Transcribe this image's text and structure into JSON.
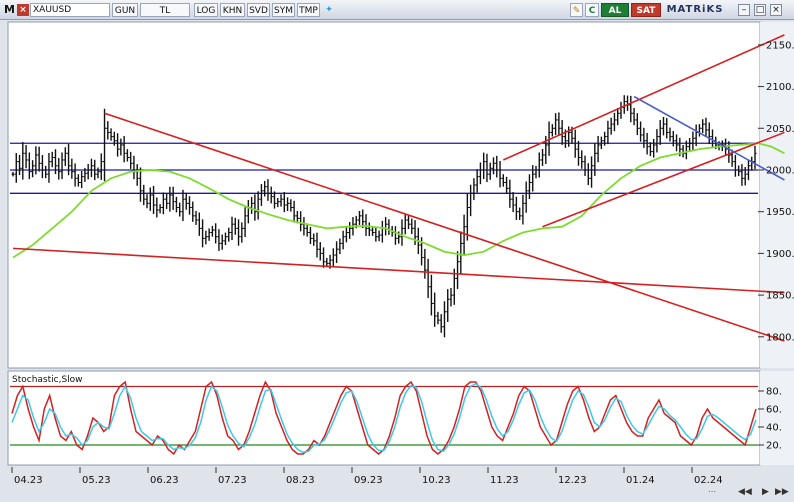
{
  "toolbar": {
    "logo": "M",
    "symbol": "XAUUSD",
    "buttons": [
      "GUN",
      "TL",
      "LOG",
      "KHN",
      "SVD",
      "SYM",
      "TMP"
    ],
    "buy_label": "AL",
    "sell_label": "SAT",
    "brand": "MATRiKS",
    "c_label": "C"
  },
  "chart_data": [
    {
      "type": "line",
      "title": "",
      "chart_style": "bar-ohlc",
      "ylim": [
        1765,
        2175
      ],
      "y_ticks": [
        1800,
        1850,
        1900,
        1950,
        2000,
        2050,
        2100,
        2150
      ],
      "y_tick_labels": [
        "1800.",
        "1850.",
        "1900.",
        "1950.",
        "2000.",
        "2050.",
        "2100.",
        "2150."
      ],
      "x_tick_labels": [
        "04.23",
        "05.23",
        "06.23",
        "07.23",
        "08.23",
        "09.23",
        "10.23",
        "11.23",
        "12.23",
        "01.24",
        "02.24"
      ],
      "price_close": [
        1995,
        2010,
        2002,
        2020,
        2012,
        1998,
        2005,
        2018,
        2008,
        2000,
        1995,
        2010,
        2015,
        2005,
        1998,
        2012,
        2020,
        2005,
        1998,
        1990,
        1985,
        1992,
        1996,
        2000,
        2005,
        1995,
        1998,
        2010,
        2050,
        2045,
        2040,
        2035,
        2025,
        2030,
        2020,
        2015,
        2008,
        1998,
        1990,
        1975,
        1965,
        1960,
        1970,
        1958,
        1952,
        1955,
        1965,
        1960,
        1970,
        1962,
        1955,
        1950,
        1965,
        1960,
        1955,
        1945,
        1940,
        1930,
        1918,
        1920,
        1925,
        1928,
        1920,
        1912,
        1915,
        1920,
        1925,
        1935,
        1930,
        1920,
        1930,
        1945,
        1955,
        1960,
        1950,
        1965,
        1975,
        1980,
        1972,
        1968,
        1960,
        1962,
        1965,
        1958,
        1960,
        1955,
        1945,
        1942,
        1935,
        1930,
        1925,
        1918,
        1915,
        1905,
        1900,
        1890,
        1888,
        1892,
        1898,
        1905,
        1912,
        1920,
        1925,
        1930,
        1935,
        1940,
        1945,
        1938,
        1930,
        1928,
        1925,
        1920,
        1922,
        1930,
        1935,
        1928,
        1925,
        1918,
        1920,
        1930,
        1940,
        1935,
        1930,
        1920,
        1910,
        1895,
        1880,
        1860,
        1840,
        1825,
        1820,
        1812,
        1830,
        1845,
        1850,
        1870,
        1890,
        1912,
        1932,
        1955,
        1972,
        1982,
        1992,
        2000,
        2010,
        1995,
        2002,
        2008,
        2000,
        1990,
        1985,
        1978,
        1965,
        1958,
        1950,
        1945,
        1960,
        1975,
        1985,
        1995,
        2000,
        2012,
        2018,
        2030,
        2045,
        2050,
        2060,
        2050,
        2040,
        2035,
        2045,
        2038,
        2025,
        2015,
        2010,
        2000,
        1990,
        2005,
        2020,
        2030,
        2035,
        2040,
        2050,
        2055,
        2060,
        2068,
        2075,
        2082,
        2078,
        2068,
        2060,
        2050,
        2042,
        2035,
        2028,
        2022,
        2030,
        2040,
        2050,
        2055,
        2045,
        2040,
        2035,
        2030,
        2025,
        2020,
        2028,
        2032,
        2038,
        2045,
        2050,
        2055,
        2048,
        2040,
        2035,
        2030,
        2028,
        2030,
        2025,
        2018,
        2010,
        2000,
        1998,
        1990,
        1995,
        2005,
        2010,
        2020
      ],
      "moving_average": [
        {
          "color": "#7ddc2e",
          "points": [
            [
              0,
              1895
            ],
            [
              6,
              1910
            ],
            [
              12,
              1930
            ],
            [
              18,
              1950
            ],
            [
              24,
              1975
            ],
            [
              30,
              1990
            ],
            [
              36,
              1998
            ],
            [
              42,
              2000
            ],
            [
              48,
              1998
            ],
            [
              54,
              1990
            ],
            [
              60,
              1978
            ],
            [
              66,
              1965
            ],
            [
              72,
              1955
            ],
            [
              78,
              1947
            ],
            [
              84,
              1940
            ],
            [
              90,
              1935
            ],
            [
              96,
              1930
            ],
            [
              102,
              1932
            ],
            [
              108,
              1933
            ],
            [
              114,
              1930
            ],
            [
              120,
              1920
            ],
            [
              126,
              1912
            ],
            [
              132,
              1902
            ],
            [
              138,
              1898
            ],
            [
              144,
              1902
            ],
            [
              150,
              1915
            ],
            [
              156,
              1925
            ],
            [
              162,
              1930
            ],
            [
              168,
              1932
            ],
            [
              174,
              1945
            ],
            [
              180,
              1970
            ],
            [
              186,
              1990
            ],
            [
              192,
              2005
            ],
            [
              198,
              2015
            ],
            [
              204,
              2020
            ],
            [
              210,
              2025
            ],
            [
              216,
              2028
            ],
            [
              222,
              2030
            ],
            [
              228,
              2032
            ],
            [
              232,
              2028
            ],
            [
              236,
              2020
            ]
          ]
        }
      ],
      "horizontal_levels": [
        {
          "value": 2032,
          "color": "#1a1aa0"
        },
        {
          "value": 2000,
          "color": "#1a1aa0"
        },
        {
          "value": 1972,
          "color": "#1a1aa0"
        }
      ],
      "trendlines": [
        {
          "color": "#d42020",
          "from": [
            0,
            1906
          ],
          "to": [
            236,
            1853
          ]
        },
        {
          "color": "#d42020",
          "from": [
            28,
            2068
          ],
          "to": [
            236,
            1795
          ]
        },
        {
          "color": "#d42020",
          "from": [
            150,
            2012
          ],
          "to": [
            236,
            2162
          ]
        },
        {
          "color": "#d42020",
          "from": [
            162,
            1932
          ],
          "to": [
            236,
            2045
          ]
        },
        {
          "color": "#4a5cc8",
          "from": [
            190,
            2088
          ],
          "to": [
            236,
            1988
          ]
        }
      ]
    },
    {
      "type": "line",
      "title": "Stochastic,Slow",
      "ylim": [
        0,
        100
      ],
      "y_ticks": [
        20,
        40,
        60,
        80
      ],
      "y_tick_labels": [
        "20.",
        "40.",
        "60.",
        "80."
      ],
      "levels": [
        {
          "value": 85,
          "color": "#b22222"
        },
        {
          "value": 20,
          "color": "#1e8a1e"
        }
      ],
      "series": [
        {
          "color": "#d42020",
          "values": [
            55,
            75,
            85,
            60,
            40,
            25,
            60,
            75,
            50,
            30,
            25,
            35,
            20,
            15,
            30,
            50,
            45,
            35,
            40,
            75,
            85,
            90,
            60,
            35,
            30,
            25,
            20,
            30,
            25,
            15,
            10,
            20,
            15,
            25,
            35,
            60,
            85,
            90,
            75,
            50,
            30,
            25,
            15,
            20,
            35,
            55,
            75,
            90,
            80,
            55,
            40,
            25,
            15,
            10,
            10,
            15,
            25,
            20,
            30,
            45,
            60,
            75,
            85,
            80,
            60,
            40,
            20,
            15,
            10,
            15,
            30,
            50,
            75,
            85,
            90,
            80,
            55,
            30,
            15,
            10,
            15,
            25,
            40,
            60,
            85,
            90,
            90,
            80,
            60,
            40,
            30,
            25,
            40,
            55,
            75,
            85,
            80,
            60,
            40,
            30,
            20,
            25,
            45,
            65,
            80,
            85,
            70,
            50,
            35,
            40,
            55,
            70,
            75,
            60,
            45,
            35,
            30,
            30,
            50,
            60,
            70,
            55,
            50,
            45,
            30,
            25,
            20,
            30,
            50,
            60,
            50,
            45,
            40,
            35,
            30,
            25,
            20,
            40,
            60
          ]
        },
        {
          "color": "#3fc8e8",
          "values": [
            45,
            60,
            75,
            70,
            50,
            35,
            45,
            60,
            55,
            40,
            30,
            32,
            28,
            20,
            25,
            40,
            45,
            40,
            38,
            55,
            75,
            85,
            72,
            50,
            35,
            30,
            25,
            27,
            27,
            20,
            15,
            17,
            16,
            20,
            28,
            45,
            70,
            85,
            80,
            62,
            42,
            30,
            22,
            18,
            28,
            42,
            62,
            80,
            82,
            65,
            48,
            32,
            22,
            15,
            12,
            13,
            20,
            21,
            26,
            38,
            52,
            67,
            78,
            80,
            68,
            50,
            32,
            20,
            14,
            14,
            24,
            40,
            62,
            78,
            86,
            84,
            68,
            45,
            25,
            15,
            13,
            20,
            32,
            50,
            72,
            85,
            88,
            84,
            70,
            52,
            38,
            30,
            35,
            48,
            65,
            78,
            81,
            70,
            52,
            38,
            28,
            24,
            35,
            53,
            70,
            80,
            76,
            62,
            45,
            40,
            48,
            62,
            72,
            68,
            53,
            42,
            35,
            32,
            42,
            53,
            63,
            60,
            53,
            48,
            40,
            32,
            26,
            27,
            38,
            52,
            54,
            50,
            45,
            40,
            35,
            30,
            26,
            32,
            48
          ]
        }
      ]
    }
  ]
}
